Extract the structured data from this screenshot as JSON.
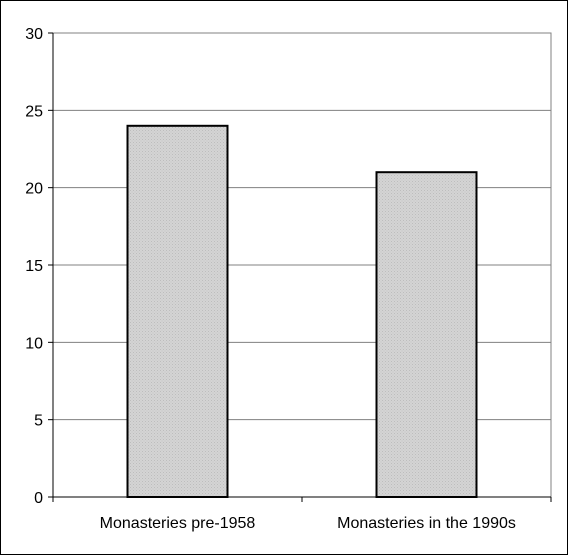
{
  "chart_data": {
    "type": "bar",
    "categories": [
      "Monasteries pre-1958",
      "Monasteries in the 1990s"
    ],
    "values": [
      24,
      21
    ],
    "title": "",
    "xlabel": "",
    "ylabel": "",
    "ylim": [
      0,
      30
    ],
    "yticks": [
      "0",
      "5",
      "10",
      "15",
      "20",
      "25",
      "30"
    ],
    "grid": true,
    "legend": "none",
    "colors": {
      "bar_fill": "#d8d8d8",
      "bar_stroke": "#000000",
      "grid": "#808080",
      "plot_border": "#808080",
      "axis": "#000000"
    }
  }
}
